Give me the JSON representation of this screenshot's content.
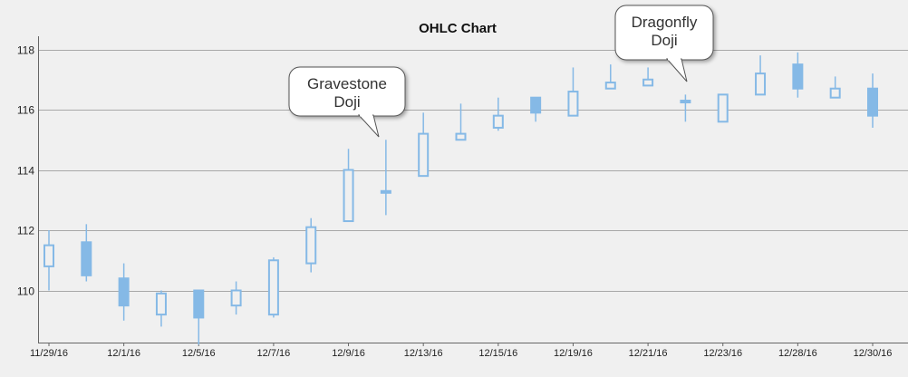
{
  "chart_data": {
    "type": "ohlc",
    "title": "OHLC Chart",
    "xlabel": "",
    "ylabel": "",
    "ylim": [
      108.2,
      118.0
    ],
    "grid": true,
    "legend": "none",
    "colors": {
      "up": "#85b9e6",
      "down": "#85b9e6",
      "grid": "#a8a8a8",
      "axis": "#666666"
    },
    "yticks": [
      110,
      112,
      114,
      116,
      118
    ],
    "xtick_labels": [
      "11/29/16",
      "12/1/16",
      "12/5/16",
      "12/7/16",
      "12/9/16",
      "12/13/16",
      "12/15/16",
      "12/19/16",
      "12/21/16",
      "12/23/16",
      "12/28/16",
      "12/30/16"
    ],
    "x": [
      "11/29/16",
      "11/30/16",
      "12/1/16",
      "12/2/16",
      "12/5/16",
      "12/6/16",
      "12/7/16",
      "12/8/16",
      "12/9/16",
      "12/12/16",
      "12/13/16",
      "12/14/16",
      "12/15/16",
      "12/16/16",
      "12/19/16",
      "12/20/16",
      "12/21/16",
      "12/22/16",
      "12/23/16",
      "12/27/16",
      "12/28/16",
      "12/29/16",
      "12/30/16"
    ],
    "ohlc": [
      {
        "open": 110.8,
        "high": 112.0,
        "low": 110.0,
        "close": 111.5
      },
      {
        "open": 111.6,
        "high": 112.2,
        "low": 110.3,
        "close": 110.5
      },
      {
        "open": 110.4,
        "high": 110.9,
        "low": 109.0,
        "close": 109.5
      },
      {
        "open": 109.2,
        "high": 110.0,
        "low": 108.8,
        "close": 109.9
      },
      {
        "open": 110.0,
        "high": 110.0,
        "low": 108.2,
        "close": 109.1
      },
      {
        "open": 109.5,
        "high": 110.3,
        "low": 109.2,
        "close": 110.0
      },
      {
        "open": 109.2,
        "high": 111.1,
        "low": 109.1,
        "close": 111.0
      },
      {
        "open": 110.9,
        "high": 112.4,
        "low": 110.6,
        "close": 112.1
      },
      {
        "open": 112.3,
        "high": 114.7,
        "low": 112.3,
        "close": 114.0
      },
      {
        "open": 113.3,
        "high": 115.0,
        "low": 112.5,
        "close": 113.3
      },
      {
        "open": 113.8,
        "high": 115.9,
        "low": 113.8,
        "close": 115.2
      },
      {
        "open": 115.0,
        "high": 116.2,
        "low": 115.0,
        "close": 115.2
      },
      {
        "open": 115.4,
        "high": 116.4,
        "low": 115.3,
        "close": 115.8
      },
      {
        "open": 116.4,
        "high": 116.4,
        "low": 115.6,
        "close": 115.9
      },
      {
        "open": 115.8,
        "high": 117.4,
        "low": 115.8,
        "close": 116.6
      },
      {
        "open": 116.7,
        "high": 117.5,
        "low": 116.7,
        "close": 116.9
      },
      {
        "open": 116.8,
        "high": 117.4,
        "low": 116.8,
        "close": 117.0
      },
      {
        "open": 116.3,
        "high": 116.5,
        "low": 115.6,
        "close": 116.3
      },
      {
        "open": 115.6,
        "high": 116.5,
        "low": 115.6,
        "close": 116.5
      },
      {
        "open": 116.5,
        "high": 117.8,
        "low": 116.5,
        "close": 117.2
      },
      {
        "open": 117.5,
        "high": 117.9,
        "low": 116.4,
        "close": 116.7
      },
      {
        "open": 116.4,
        "high": 117.1,
        "low": 116.4,
        "close": 116.7
      },
      {
        "open": 116.7,
        "high": 117.2,
        "low": 115.4,
        "close": 115.8
      }
    ],
    "annotations": [
      {
        "text": [
          "Gravestone",
          "Doji"
        ],
        "date": "12/12/16"
      },
      {
        "text": [
          "Dragonfly",
          "Doji"
        ],
        "date": "12/22/16"
      }
    ]
  }
}
